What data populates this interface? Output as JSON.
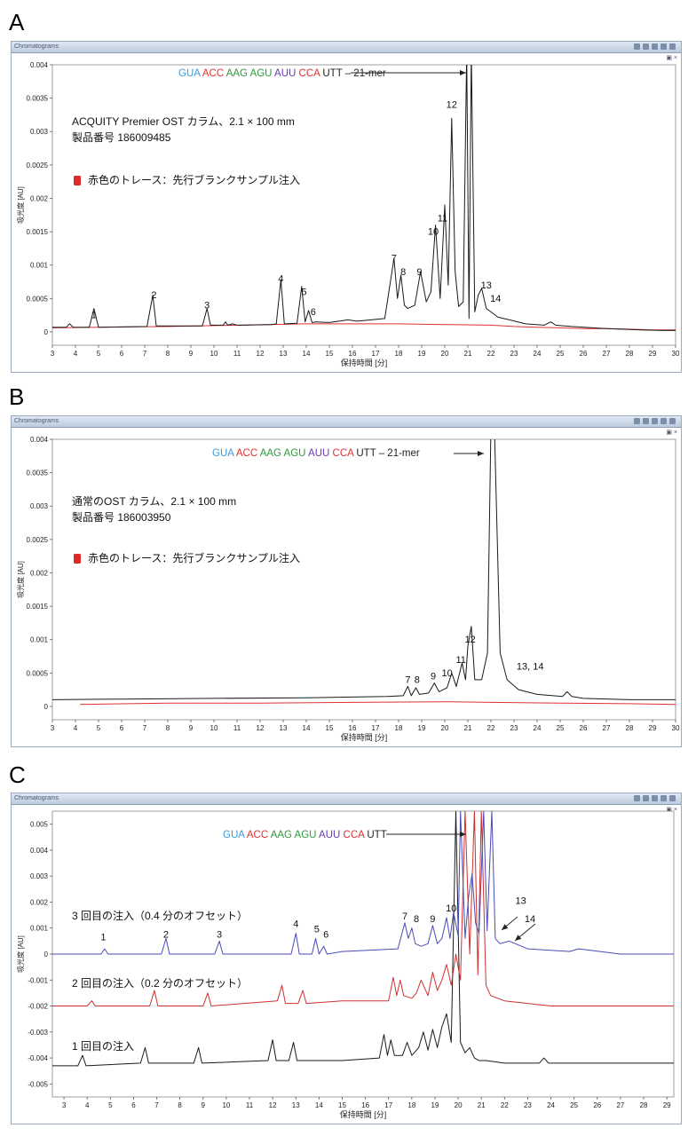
{
  "window_title": "Chromatograms",
  "chart_data": [
    {
      "panel": "A",
      "type": "line",
      "xlabel": "保持時間 [分]",
      "ylabel": "吸光度 [AU]",
      "xlim": [
        3,
        30
      ],
      "ylim": [
        -0.0002,
        0.004
      ],
      "xticks": [
        "3",
        "4",
        "5",
        "6",
        "7",
        "8",
        "9",
        "10",
        "11",
        "12",
        "13",
        "14",
        "15",
        "16",
        "17",
        "18",
        "19",
        "20",
        "21",
        "22",
        "23",
        "24",
        "25",
        "26",
        "27",
        "28",
        "29",
        "30"
      ],
      "yticks": [
        "0",
        "0.0005",
        "0.001",
        "0.0015",
        "0.002",
        "0.0025",
        "0.003",
        "0.0035",
        "0.004"
      ],
      "sequence_annotation": {
        "codons": [
          "GUA",
          "ACC",
          "AAG",
          "AGU",
          "AUU",
          "CCA",
          "UTT"
        ],
        "suffix": " – 21-mer"
      },
      "notes": [
        "ACQUITY Premier OST カラム、2.1 × 100 mm",
        "製品番号 186009485"
      ],
      "legend": "赤色のトレース：先行ブランクサンプル注入",
      "peak_labels": [
        {
          "label": "1",
          "x": 4.8,
          "y": 0.00015
        },
        {
          "label": "2",
          "x": 7.4,
          "y": 0.00045
        },
        {
          "label": "3",
          "x": 9.7,
          "y": 0.0003
        },
        {
          "label": "4",
          "x": 12.9,
          "y": 0.0007
        },
        {
          "label": "5",
          "x": 13.9,
          "y": 0.0005
        },
        {
          "label": "6",
          "x": 14.3,
          "y": 0.0002
        },
        {
          "label": "7",
          "x": 17.8,
          "y": 0.001
        },
        {
          "label": "8",
          "x": 18.2,
          "y": 0.0008
        },
        {
          "label": "9",
          "x": 18.9,
          "y": 0.0008
        },
        {
          "label": "10",
          "x": 19.5,
          "y": 0.0014
        },
        {
          "label": "11",
          "x": 19.9,
          "y": 0.0016
        },
        {
          "label": "12",
          "x": 20.3,
          "y": 0.0033
        },
        {
          "label": "13",
          "x": 21.8,
          "y": 0.0006
        },
        {
          "label": "14",
          "x": 22.2,
          "y": 0.0004
        }
      ],
      "series": [
        {
          "color": "#1a1a1a",
          "x": [
            3,
            3.6,
            3.75,
            3.9,
            4.6,
            4.8,
            5.0,
            7.1,
            7.35,
            7.5,
            9.5,
            9.7,
            9.85,
            10.4,
            10.5,
            10.6,
            10.8,
            11.0,
            11.2,
            12.5,
            12.7,
            12.9,
            13.05,
            13.6,
            13.8,
            13.95,
            14.1,
            14.25,
            14.4,
            15.0,
            15.8,
            16.2,
            16.8,
            17.4,
            17.8,
            17.95,
            18.1,
            18.25,
            18.4,
            18.7,
            18.95,
            19.2,
            19.4,
            19.6,
            19.8,
            20.0,
            20.15,
            20.3,
            20.45,
            20.6,
            20.8,
            20.95,
            21.05,
            21.15,
            21.3,
            21.45,
            21.6,
            21.8,
            22.0,
            22.3,
            22.8,
            23.5,
            24.3,
            24.6,
            24.8,
            25.5,
            27,
            28.5,
            29.5,
            30
          ],
          "y": [
            7e-05,
            7e-05,
            0.00012,
            7e-05,
            7e-05,
            0.00035,
            7e-05,
            8e-05,
            0.00055,
            9e-05,
            9e-05,
            0.00035,
            0.0001,
            0.0001,
            0.00015,
            0.0001,
            0.00012,
            0.0001,
            0.0001,
            0.00011,
            0.00012,
            0.00078,
            0.00012,
            0.00013,
            0.00068,
            0.00015,
            0.00032,
            0.00014,
            0.00015,
            0.00014,
            0.00018,
            0.00016,
            0.00018,
            0.0002,
            0.0011,
            0.0005,
            0.00085,
            0.0004,
            0.00035,
            0.0004,
            0.0009,
            0.00045,
            0.0006,
            0.0016,
            0.0005,
            0.0019,
            0.0007,
            0.0032,
            0.0009,
            0.00038,
            0.00045,
            0.0042,
            0.0002,
            0.0042,
            0.0003,
            0.00055,
            0.00065,
            0.00035,
            0.0003,
            0.00022,
            0.00018,
            0.00012,
            0.0001,
            0.00015,
            0.0001,
            8e-05,
            5e-05,
            3e-05,
            2e-05,
            2e-05
          ]
        },
        {
          "color": "#e03030",
          "x": [
            3,
            5,
            8,
            11,
            14,
            16,
            18,
            20,
            22,
            23,
            24,
            25,
            26,
            27,
            28,
            29,
            30
          ],
          "y": [
            6e-05,
            7e-05,
            8e-05,
            0.0001,
            0.00012,
            0.00012,
            0.00012,
            0.00011,
            0.0001,
            8e-05,
            7e-05,
            6e-05,
            5e-05,
            5e-05,
            4e-05,
            3e-05,
            3e-05
          ]
        }
      ]
    },
    {
      "panel": "B",
      "type": "line",
      "xlabel": "保持時間 [分]",
      "ylabel": "吸光度 [AU]",
      "xlim": [
        3,
        30
      ],
      "ylim": [
        -0.0002,
        0.004
      ],
      "xticks": [
        "3",
        "4",
        "5",
        "6",
        "7",
        "8",
        "9",
        "10",
        "11",
        "12",
        "13",
        "14",
        "15",
        "16",
        "17",
        "18",
        "19",
        "20",
        "21",
        "22",
        "23",
        "24",
        "25",
        "26",
        "27",
        "28",
        "29",
        "30"
      ],
      "yticks": [
        "0",
        "0.0005",
        "0.001",
        "0.0015",
        "0.002",
        "0.0025",
        "0.003",
        "0.0035",
        "0.004"
      ],
      "sequence_annotation": {
        "codons": [
          "GUA",
          "ACC",
          "AAG",
          "AGU",
          "AUU",
          "CCA",
          "UTT"
        ],
        "suffix": " – 21-mer"
      },
      "notes": [
        "通常のOST カラム、2.1 × 100 mm",
        "製品番号 186003950"
      ],
      "legend": "赤色のトレース：先行ブランクサンプル注入",
      "peak_labels": [
        {
          "label": "7",
          "x": 18.4,
          "y": 0.0003
        },
        {
          "label": "8",
          "x": 18.8,
          "y": 0.0003
        },
        {
          "label": "9",
          "x": 19.5,
          "y": 0.00035
        },
        {
          "label": "10",
          "x": 20.1,
          "y": 0.0004
        },
        {
          "label": "11",
          "x": 20.7,
          "y": 0.0006
        },
        {
          "label": "12",
          "x": 21.1,
          "y": 0.0009
        },
        {
          "label": "13, 14",
          "x": 23.7,
          "y": 0.0005
        }
      ],
      "series": [
        {
          "color": "#1a1a1a",
          "x": [
            3,
            6,
            10,
            14,
            17.5,
            18.2,
            18.4,
            18.55,
            18.75,
            18.9,
            19.3,
            19.55,
            19.75,
            20.1,
            20.3,
            20.5,
            20.75,
            20.9,
            21.0,
            21.15,
            21.3,
            21.6,
            21.85,
            22.0,
            22.15,
            22.4,
            22.7,
            23.2,
            24,
            25.1,
            25.3,
            25.5,
            26,
            28,
            30
          ],
          "y": [
            0.0001,
            0.00011,
            0.00012,
            0.00013,
            0.00015,
            0.00016,
            0.0003,
            0.00016,
            0.00028,
            0.00018,
            0.0002,
            0.00035,
            0.00022,
            0.00028,
            0.0005,
            0.0003,
            0.00065,
            0.0004,
            0.0009,
            0.0012,
            0.0004,
            0.0004,
            0.0008,
            0.0042,
            0.0042,
            0.0008,
            0.0004,
            0.00025,
            0.00018,
            0.00015,
            0.00022,
            0.00015,
            0.00012,
            0.0001,
            0.0001
          ]
        },
        {
          "color": "#e03030",
          "x": [
            4.2,
            8,
            12,
            16,
            20,
            22,
            25,
            28,
            30
          ],
          "y": [
            3e-05,
            5e-05,
            5e-05,
            6e-05,
            7e-05,
            6e-05,
            5e-05,
            4e-05,
            3e-05
          ]
        }
      ]
    },
    {
      "panel": "C",
      "type": "line",
      "xlabel": "保持時間 [分]",
      "ylabel": "吸光度 [AU]",
      "xlim": [
        2.5,
        29.3
      ],
      "ylim": [
        -0.0055,
        0.0055
      ],
      "xticks": [
        "3",
        "4",
        "5",
        "6",
        "7",
        "8",
        "9",
        "10",
        "11",
        "12",
        "13",
        "14",
        "15",
        "16",
        "17",
        "18",
        "19",
        "20",
        "21",
        "22",
        "23",
        "24",
        "25",
        "26",
        "27",
        "28",
        "29"
      ],
      "yticks": [
        "-0.005",
        "-0.004",
        "-0.003",
        "-0.002",
        "-0.001",
        "0",
        "0.001",
        "0.002",
        "0.003",
        "0.004",
        "0.005"
      ],
      "sequence_annotation": {
        "codons": [
          "GUA",
          "ACC",
          "AAG",
          "AGU",
          "AUU",
          "CCA",
          "UTT"
        ],
        "suffix": ""
      },
      "trace_labels": [
        {
          "text": "3 回目の注入（0.4 分のオフセット）",
          "color": "#4040b0"
        },
        {
          "text": "2 回目の注入（0.2 分のオフセット）",
          "color": "#c02020"
        },
        {
          "text": "1 回目の注入",
          "color": "#1a1a1a"
        }
      ],
      "peak_labels": [
        {
          "label": "1",
          "x": 4.7,
          "y": 0.0004
        },
        {
          "label": "2",
          "x": 7.4,
          "y": 0.0005
        },
        {
          "label": "3",
          "x": 9.7,
          "y": 0.0005
        },
        {
          "label": "4",
          "x": 13.0,
          "y": 0.0009
        },
        {
          "label": "5",
          "x": 13.9,
          "y": 0.0007
        },
        {
          "label": "6",
          "x": 14.3,
          "y": 0.0005
        },
        {
          "label": "7",
          "x": 17.7,
          "y": 0.0012
        },
        {
          "label": "8",
          "x": 18.2,
          "y": 0.0011
        },
        {
          "label": "9",
          "x": 18.9,
          "y": 0.0011
        },
        {
          "label": "10",
          "x": 19.7,
          "y": 0.0015
        },
        {
          "label": "13",
          "x": 22.7,
          "y": 0.0018
        },
        {
          "label": "14",
          "x": 23.1,
          "y": 0.0011
        }
      ],
      "series": [
        {
          "name": "3 回目の注入（0.4 分のオフセット）",
          "color": "#4a4ab8",
          "x": [
            2.5,
            4.6,
            4.75,
            4.9,
            7.2,
            7.4,
            7.55,
            9.5,
            9.7,
            9.85,
            12.8,
            13.0,
            13.15,
            13.7,
            13.85,
            14.0,
            14.2,
            14.35,
            15,
            17.4,
            17.7,
            17.85,
            18.0,
            18.15,
            18.4,
            18.7,
            18.9,
            19.1,
            19.3,
            19.5,
            19.65,
            19.8,
            20.0,
            20.1,
            20.3,
            20.45,
            20.6,
            20.75,
            20.9,
            21.1,
            21.25,
            21.45,
            21.6,
            21.8,
            22.2,
            23,
            24.8,
            25.2,
            27,
            29.3
          ],
          "y": [
            0.0,
            0.0,
            0.0002,
            0.0,
            0.0,
            0.0006,
            0.0,
            0.0,
            0.0005,
            0.0,
            0.0,
            0.0008,
            0.0,
            0.0,
            0.0006,
            0.0,
            0.0003,
            0.0,
            0.0001,
            0.0002,
            0.0012,
            0.0006,
            0.001,
            0.0004,
            0.0003,
            0.0004,
            0.0011,
            0.0004,
            0.0006,
            0.0014,
            0.0006,
            0.0016,
            0.0007,
            0.0055,
            0.0006,
            0.0022,
            0.0031,
            0.0012,
            0.0008,
            0.0055,
            0.0009,
            0.0055,
            0.0006,
            0.0004,
            0.0005,
            0.0002,
            0.0001,
            0.0002,
            0.0,
            0.0
          ]
        },
        {
          "name": "2 回目の注入（0.2 分のオフセット）",
          "color": "#d03030",
          "x": [
            2.5,
            4.0,
            4.2,
            4.35,
            6.7,
            6.9,
            7.05,
            9.0,
            9.2,
            9.35,
            12.2,
            12.4,
            12.55,
            13.1,
            13.3,
            13.45,
            15,
            17.0,
            17.2,
            17.35,
            17.5,
            17.65,
            18.0,
            18.2,
            18.4,
            18.7,
            18.9,
            19.1,
            19.3,
            19.5,
            19.7,
            19.9,
            20.1,
            20.3,
            20.5,
            20.7,
            20.85,
            21.0,
            21.2,
            21.4,
            22,
            23,
            24,
            26,
            29.3
          ],
          "y": [
            -0.002,
            -0.002,
            -0.0018,
            -0.002,
            -0.002,
            -0.0014,
            -0.002,
            -0.002,
            -0.0015,
            -0.002,
            -0.0018,
            -0.0012,
            -0.0019,
            -0.0019,
            -0.0014,
            -0.0019,
            -0.0018,
            -0.0018,
            -0.0009,
            -0.0016,
            -0.001,
            -0.0016,
            -0.0017,
            -0.0015,
            -0.001,
            -0.0016,
            -0.0007,
            -0.0014,
            -0.001,
            -0.0004,
            -0.0012,
            0.0,
            -0.001,
            0.0055,
            0.0,
            0.0055,
            -0.0008,
            0.0055,
            -0.0012,
            -0.0016,
            -0.0018,
            -0.0019,
            -0.002,
            -0.002,
            -0.002
          ]
        },
        {
          "name": "1 回目の注入",
          "color": "#1a1a1a",
          "x": [
            2.5,
            3.6,
            3.8,
            3.95,
            6.3,
            6.5,
            6.65,
            8.6,
            8.8,
            8.95,
            11.8,
            12.0,
            12.15,
            12.7,
            12.9,
            13.05,
            15,
            16.6,
            16.8,
            16.95,
            17.1,
            17.25,
            17.6,
            17.8,
            18.0,
            18.3,
            18.5,
            18.7,
            18.9,
            19.1,
            19.3,
            19.5,
            19.7,
            19.9,
            20.1,
            20.3,
            20.5,
            20.7,
            20.9,
            21.2,
            22,
            23.5,
            23.7,
            23.9,
            26,
            29.3
          ],
          "y": [
            -0.0043,
            -0.0043,
            -0.0039,
            -0.0043,
            -0.0042,
            -0.0036,
            -0.0042,
            -0.0042,
            -0.0036,
            -0.0042,
            -0.0041,
            -0.0033,
            -0.0041,
            -0.0041,
            -0.0034,
            -0.0041,
            -0.0041,
            -0.004,
            -0.0031,
            -0.0039,
            -0.0033,
            -0.0039,
            -0.0039,
            -0.0034,
            -0.0039,
            -0.0036,
            -0.003,
            -0.0037,
            -0.0029,
            -0.0036,
            -0.0028,
            -0.0023,
            -0.0034,
            0.0055,
            -0.0034,
            -0.0038,
            -0.0036,
            -0.004,
            -0.0041,
            -0.0041,
            -0.0042,
            -0.0042,
            -0.004,
            -0.0042,
            -0.0042,
            -0.0042
          ]
        }
      ]
    }
  ]
}
